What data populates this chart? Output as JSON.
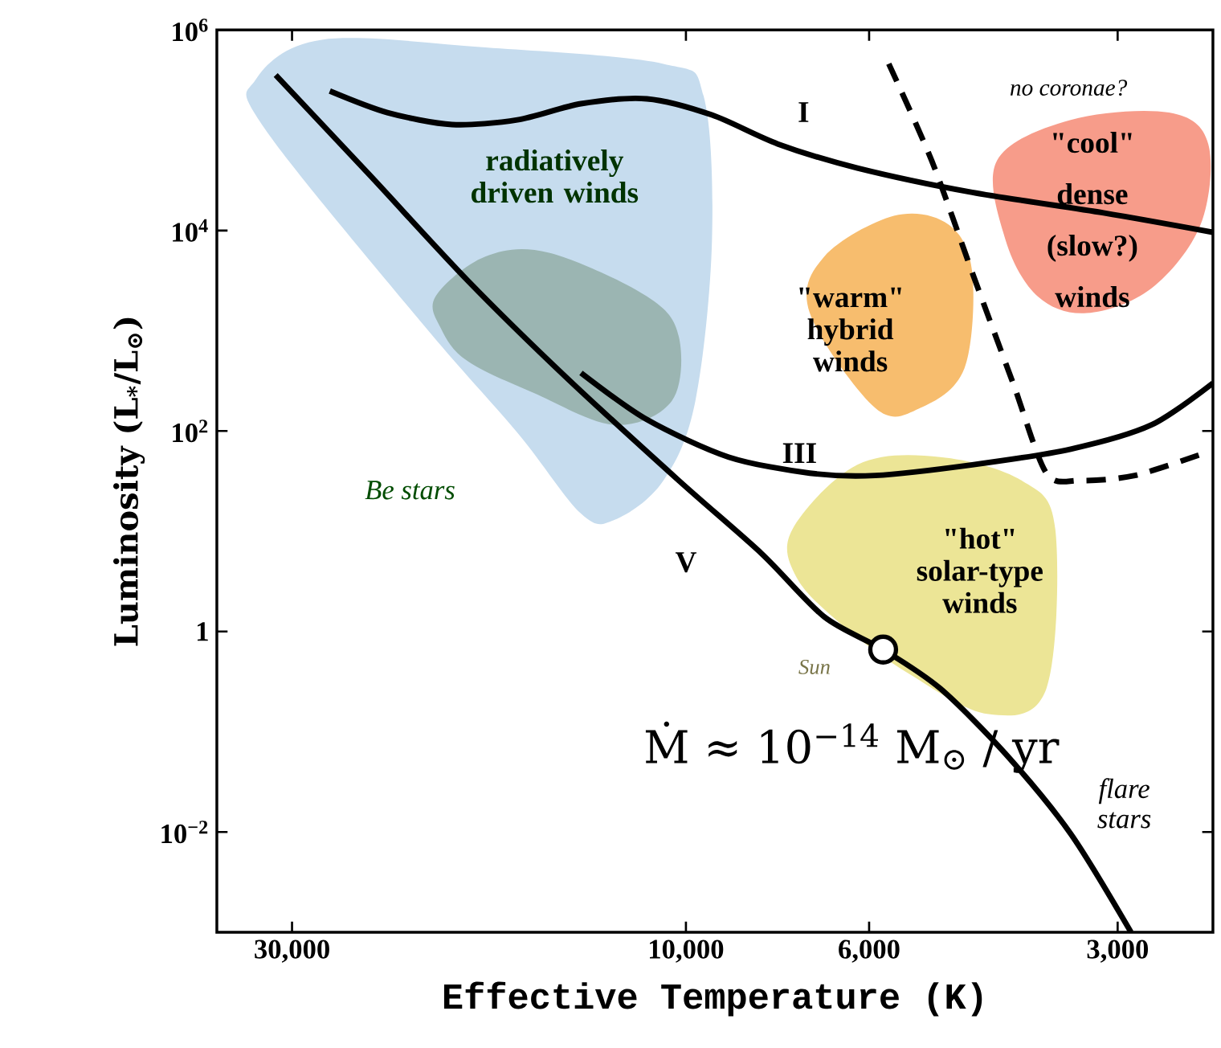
{
  "chart_data": {
    "type": "line",
    "xlabel": "Effective Temperature (K)",
    "ylabel": "Luminosity (L$_{*}$/L$_{⊙}$)",
    "log": "xy",
    "xlim": [
      37000,
      2300
    ],
    "ylim": [
      0.001,
      1000000
    ],
    "xticks": [
      {
        "value": 30000,
        "label": "30,000"
      },
      {
        "value": 10000,
        "label": "10,000"
      },
      {
        "value": 6000,
        "label": "6,000"
      },
      {
        "value": 3000,
        "label": "3,000"
      }
    ],
    "yticks": [
      {
        "value": 1000000,
        "label": "10$^{6}$"
      },
      {
        "value": 10000,
        "label": "10$^{4}$"
      },
      {
        "value": 100,
        "label": "10$^{2}$"
      },
      1,
      {
        "value": 0.01,
        "label": "10$^{−2}$"
      }
    ],
    "grid": false,
    "series": [
      {
        "type": "area",
        "color": "#c6dcee",
        "x": [
          33200,
          27600,
          17500,
          10650,
          9520,
          9300,
          9740,
          10650,
          12200,
          13400,
          16000,
          21000,
          32400
        ],
        "values": [
          320000,
          800000,
          670000,
          460000,
          220000,
          8000,
          200,
          32,
          13,
          15,
          96,
          1260,
          105000
        ]
      },
      {
        "type": "area",
        "color": "#9bb5b2",
        "x": [
          20100,
          17500,
          14650,
          11150,
          10200,
          10400,
          12200,
          15300,
          18400,
          19800
        ],
        "values": [
          2200,
          5500,
          6000,
          2200,
          870,
          200,
          115,
          240,
          500,
          1050
        ]
      },
      {
        "type": "area",
        "color": "#f7bd6e",
        "x": [
          6800,
          5600,
          4810,
          4500,
          4600,
          5200,
          5900,
          7080
        ],
        "values": [
          5500,
          14000,
          11500,
          3800,
          420,
          170,
          170,
          1500
        ]
      },
      {
        "type": "area",
        "color": "#f79c8a",
        "x": [
          4200,
          3420,
          2600,
          2330,
          2380,
          2730,
          3270,
          3750,
          4100
        ],
        "values": [
          50000,
          127000,
          150000,
          73000,
          11500,
          2650,
          1500,
          2200,
          8000
        ]
      },
      {
        "type": "area",
        "color": "#ece596",
        "x": [
          7430,
          6200,
          4920,
          3920,
          3570,
          3660,
          4300,
          5370,
          6470,
          7350
        ],
        "values": [
          10.5,
          46,
          55,
          32,
          10.5,
          0.27,
          0.15,
          0.38,
          1.16,
          3.5
        ]
      },
      {
        "color": "#000000",
        "x": [
          31400,
          24100,
          18400,
          14000,
          10200,
          8100,
          6800,
          5770,
          4920,
          4100,
          3420,
          2890
        ],
        "values": [
          355000,
          35000,
          3200,
          350,
          32,
          6,
          1.4,
          0.66,
          0.27,
          0.06,
          0.0096,
          0.001
        ]
      },
      {
        "color": "#000000",
        "x": [
          13400,
          11150,
          8880,
          7080,
          5900,
          4500,
          3420,
          2730,
          2300
        ],
        "values": [
          380,
          130,
          55,
          38,
          36,
          46,
          66,
          115,
          300
        ]
      },
      {
        "color": "#000000",
        "x": [
          27000,
          23000,
          19200,
          16000,
          13400,
          11150,
          9300,
          7740,
          6200,
          4500,
          3120,
          2300
        ],
        "values": [
          246000,
          150000,
          114000,
          127000,
          184000,
          206000,
          142000,
          73000,
          42000,
          24000,
          15000,
          9600
        ]
      },
      {
        "color": "#000000",
        "line_style": "dashed",
        "x": [
          5680,
          5040,
          4500,
          4010,
          3660,
          3340,
          2860,
          2330
        ],
        "values": [
          460000,
          50000,
          3800,
          290,
          38,
          32,
          36,
          62
        ]
      },
      {
        "type": "scatter",
        "color": "#000000",
        "x": [
          5770
        ],
        "values": [
          0.66
        ]
      }
    ],
    "annotations": [
      "radiatively driven winds",
      "Be stars",
      "I",
      "III",
      "V",
      "no coronae?",
      "\"cool\" dense (slow?) winds",
      "\"warm\" hybrid winds",
      "\"hot\" solar-type winds",
      "Sun",
      "flare stars",
      "Ṁ ≈ 10$^{−14}$ M$_{⊙}$ / yr"
    ]
  }
}
